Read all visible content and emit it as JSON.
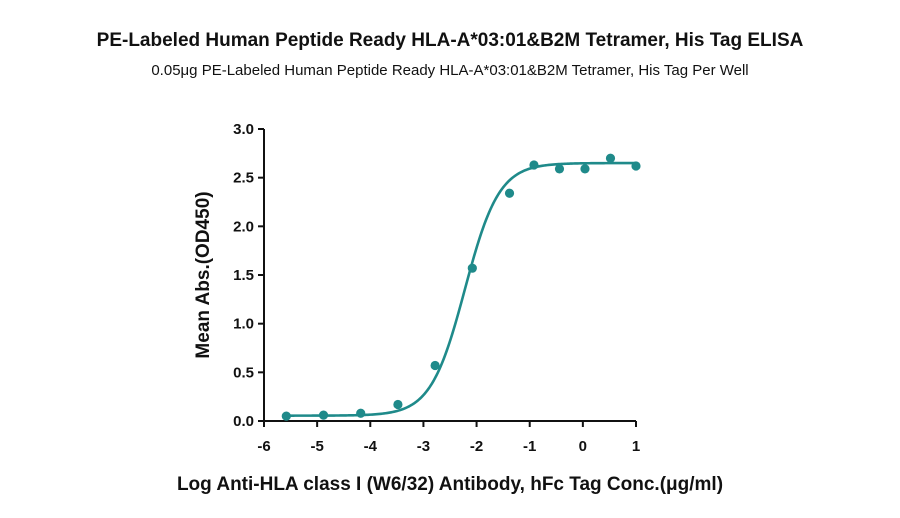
{
  "chart_data": {
    "type": "scatter",
    "title": "PE-Labeled Human Peptide Ready HLA-A*03:01&B2M Tetramer, His Tag ELISA",
    "subtitle": "0.05μg PE-Labeled Human Peptide Ready HLA-A*03:01&B2M Tetramer, His Tag Per Well",
    "xlabel": "Log Anti-HLA class I (W6/32) Antibody, hFc Tag Conc.(μg/ml)",
    "ylabel": "Mean Abs.(OD450)",
    "xlim": [
      -6,
      1
    ],
    "ylim": [
      0,
      3.0
    ],
    "x_ticks": [
      "-6",
      "-5",
      "-4",
      "-3",
      "-2",
      "-1",
      "0",
      "1"
    ],
    "y_ticks": [
      "0.0",
      "0.5",
      "1.0",
      "1.5",
      "2.0",
      "2.5",
      "3.0"
    ],
    "grid": false,
    "color": "#1f8a8a",
    "series": [
      {
        "points": [
          {
            "x": -5.58,
            "y": 0.05
          },
          {
            "x": -4.88,
            "y": 0.06
          },
          {
            "x": -4.18,
            "y": 0.08
          },
          {
            "x": -3.48,
            "y": 0.17
          },
          {
            "x": -2.78,
            "y": 0.57
          },
          {
            "x": -2.08,
            "y": 1.57
          },
          {
            "x": -1.38,
            "y": 2.34
          },
          {
            "x": -0.92,
            "y": 2.63
          },
          {
            "x": -0.44,
            "y": 2.59
          },
          {
            "x": 0.04,
            "y": 2.59
          },
          {
            "x": 0.52,
            "y": 2.7
          },
          {
            "x": 1.0,
            "y": 2.62
          }
        ],
        "fit": {
          "model": "4PL",
          "bottom": 0.055,
          "top": 2.65,
          "logEC50": -2.22,
          "hill": 1.35
        }
      }
    ]
  }
}
